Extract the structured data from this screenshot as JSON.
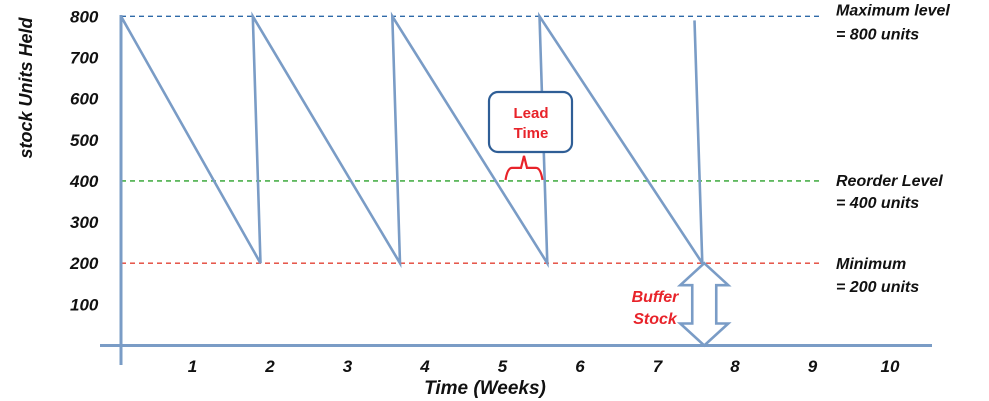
{
  "chart_data": {
    "type": "line",
    "title": "",
    "xlabel": "Time (Weeks)",
    "ylabel": "stock Units Held",
    "x_ticks": [
      "1",
      "2",
      "3",
      "4",
      "5",
      "6",
      "7",
      "8",
      "9",
      "10"
    ],
    "y_ticks": [
      "100",
      "200",
      "300",
      "400",
      "500",
      "600",
      "700",
      "800"
    ],
    "xlim": [
      0,
      10.5
    ],
    "ylim": [
      0,
      800
    ],
    "series": [
      {
        "values": [
          [
            0,
            800
          ],
          [
            1.8,
            200
          ],
          [
            1.7,
            800
          ],
          [
            3.6,
            200
          ],
          [
            3.5,
            800
          ],
          [
            5.5,
            200
          ],
          [
            5.4,
            800
          ],
          [
            7.5,
            200
          ],
          [
            7.4,
            790
          ]
        ],
        "color": "#7a9cc6"
      }
    ],
    "reference_lines": [
      {
        "value": 800,
        "color": "#2f6aa8",
        "label_lines": [
          "Maximum level",
          "= 800 units"
        ]
      },
      {
        "value": 400,
        "color": "#2aa12a",
        "label_lines": [
          "Reorder Level",
          "= 400 units"
        ]
      },
      {
        "value": 200,
        "color": "#e34234",
        "label_lines": [
          "Minimum",
          "= 200 units"
        ]
      }
    ],
    "annotations": {
      "lead_time": [
        "Lead",
        "Time"
      ],
      "buffer_stock": [
        "Buffer",
        "Stock"
      ]
    },
    "lead_time_span": [
      5.0,
      5.4
    ],
    "buffer_x": 7.5
  }
}
